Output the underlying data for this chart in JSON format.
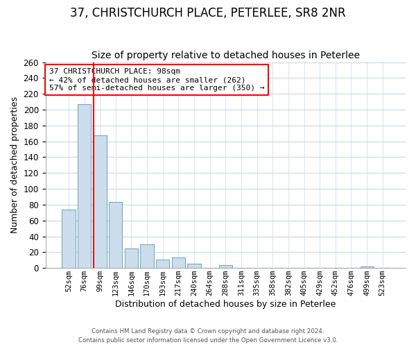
{
  "title": "37, CHRISTCHURCH PLACE, PETERLEE, SR8 2NR",
  "subtitle": "Size of property relative to detached houses in Peterlee",
  "xlabel": "Distribution of detached houses by size in Peterlee",
  "ylabel": "Number of detached properties",
  "bin_labels": [
    "52sqm",
    "76sqm",
    "99sqm",
    "123sqm",
    "146sqm",
    "170sqm",
    "193sqm",
    "217sqm",
    "240sqm",
    "264sqm",
    "288sqm",
    "311sqm",
    "335sqm",
    "358sqm",
    "382sqm",
    "405sqm",
    "429sqm",
    "452sqm",
    "476sqm",
    "499sqm",
    "523sqm"
  ],
  "bar_heights": [
    74,
    207,
    168,
    83,
    25,
    30,
    11,
    13,
    5,
    0,
    4,
    0,
    0,
    0,
    0,
    0,
    0,
    0,
    0,
    2,
    0
  ],
  "bar_color": "#ccdded",
  "bar_edge_color": "#7aaabb",
  "red_line_index": 2,
  "ylim": [
    0,
    260
  ],
  "yticks": [
    0,
    20,
    40,
    60,
    80,
    100,
    120,
    140,
    160,
    180,
    200,
    220,
    240,
    260
  ],
  "annotation_title": "37 CHRISTCHURCH PLACE: 98sqm",
  "annotation_line1": "← 42% of detached houses are smaller (262)",
  "annotation_line2": "57% of semi-detached houses are larger (350) →",
  "footer1": "Contains HM Land Registry data © Crown copyright and database right 2024.",
  "footer2": "Contains public sector information licensed under the Open Government Licence v3.0.",
  "title_fontsize": 12,
  "subtitle_fontsize": 10,
  "tick_label_fontsize": 7.5,
  "axis_label_fontsize": 9
}
